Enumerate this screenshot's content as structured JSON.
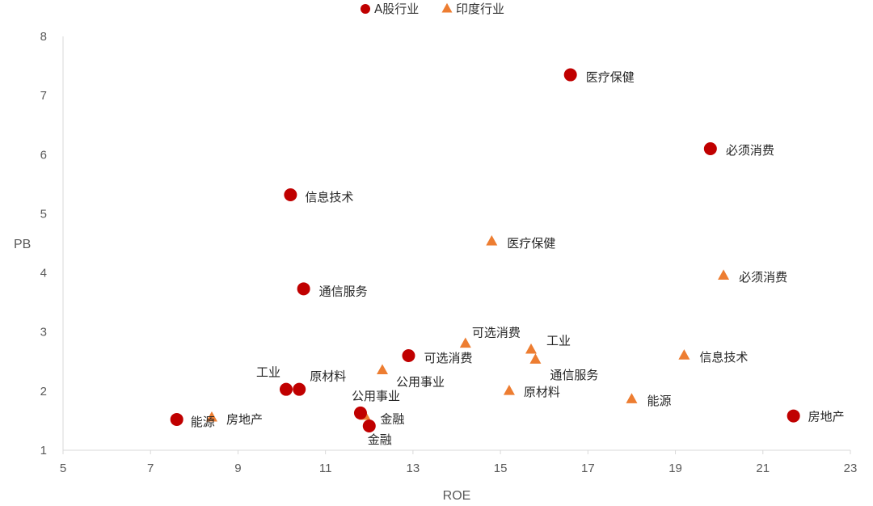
{
  "chart_data": {
    "type": "scatter",
    "xlabel": "ROE",
    "ylabel": "PB",
    "xlim": [
      5,
      23
    ],
    "ylim": [
      1,
      8
    ],
    "xticks": [
      5,
      7,
      9,
      11,
      13,
      15,
      17,
      19,
      21,
      23
    ],
    "yticks": [
      1,
      2,
      3,
      4,
      5,
      6,
      7,
      8
    ],
    "grid": false,
    "legend_position": "top",
    "series": [
      {
        "name": "A股行业",
        "marker": "circle",
        "color": "#C00000",
        "points": [
          {
            "label": "医疗保健",
            "x": 16.6,
            "y": 7.35
          },
          {
            "label": "必须消费",
            "x": 19.8,
            "y": 6.1
          },
          {
            "label": "信息技术",
            "x": 10.2,
            "y": 5.32
          },
          {
            "label": "通信服务",
            "x": 10.5,
            "y": 3.73
          },
          {
            "label": "可选消费",
            "x": 12.9,
            "y": 2.6
          },
          {
            "label": "工业",
            "x": 10.1,
            "y": 2.03
          },
          {
            "label": "原材料",
            "x": 10.4,
            "y": 2.03
          },
          {
            "label": "公用事业",
            "x": 11.8,
            "y": 1.63
          },
          {
            "label": "金融",
            "x": 12.0,
            "y": 1.41
          },
          {
            "label": "能源",
            "x": 7.6,
            "y": 1.52
          },
          {
            "label": "房地产",
            "x": 21.7,
            "y": 1.58
          }
        ]
      },
      {
        "name": "印度行业",
        "marker": "triangle",
        "color": "#ED7D31",
        "points": [
          {
            "label": "医疗保健",
            "x": 14.8,
            "y": 4.53
          },
          {
            "label": "必须消费",
            "x": 20.1,
            "y": 3.95
          },
          {
            "label": "可选消费",
            "x": 14.2,
            "y": 2.8
          },
          {
            "label": "工业",
            "x": 15.7,
            "y": 2.7
          },
          {
            "label": "通信服务",
            "x": 15.8,
            "y": 2.53
          },
          {
            "label": "信息技术",
            "x": 19.2,
            "y": 2.6
          },
          {
            "label": "公用事业",
            "x": 12.3,
            "y": 2.35
          },
          {
            "label": "原材料",
            "x": 15.2,
            "y": 2.0
          },
          {
            "label": "能源",
            "x": 18.0,
            "y": 1.86
          },
          {
            "label": "房地产",
            "x": 8.4,
            "y": 1.55
          },
          {
            "label": "金融",
            "x": 11.9,
            "y": 1.58
          }
        ]
      }
    ]
  }
}
